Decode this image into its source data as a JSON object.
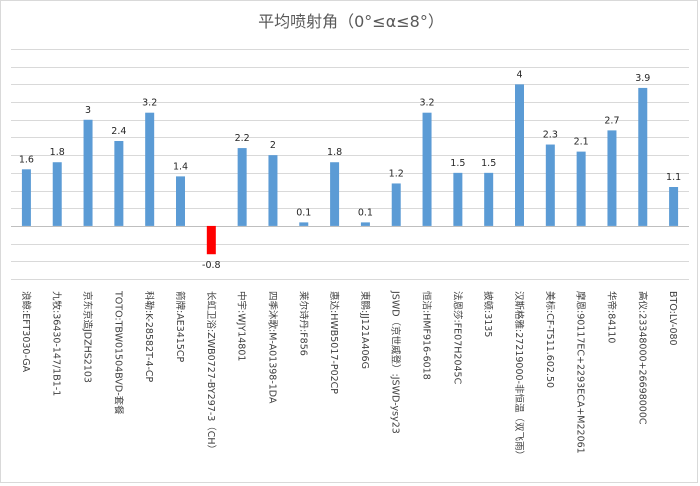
{
  "chart_data": {
    "type": "bar",
    "title": "平均喷射角（0°≤α≤8°）",
    "categories": [
      "浪鲸:EFT3030-GA",
      "九牧:36430-147/1B1-1",
      "京东京造JDZHS2103",
      "TOTO:TBW01504BVD-套餐",
      "科勒:K-28582T-4-CP",
      "箭牌:AE3415CP",
      "长虹卫浴:ZWB0727-BY297-3（CH）",
      "中宇:WJY14801",
      "四季沐歌:M-A01398-1DA",
      "莱尔诗丹:F856",
      "惠达:HWB5017-P02CP",
      "東鹏:JJ121A406G",
      "JSWD（京世威登）:JSWD-ysy23",
      "恒洁:HMF916-6018",
      "法恩莎:FE07H2045C",
      "披顿:3135",
      "汉斯格雅:27219000-非恒温（双飞雨）",
      "美标:CF-T511.602.50",
      "摩恩:90117EC+2293ECA+M22061",
      "华帝:84110",
      "高仪:23348000+26698000C",
      "BTO:LV-080"
    ],
    "values": [
      1.6,
      1.8,
      3,
      2.4,
      3.2,
      1.4,
      -0.8,
      2.2,
      2,
      0.1,
      1.8,
      0.1,
      1.2,
      3.2,
      1.5,
      1.5,
      4,
      2.3,
      2.1,
      2.7,
      3.9,
      1.1
    ],
    "value_labels": [
      "1.6",
      "1.8",
      "3",
      "2.4",
      "3.2",
      "1.4",
      "-0.8",
      "2.2",
      "2",
      "0.1",
      "1.8",
      "0.1",
      "1.2",
      "3.2",
      "1.5",
      "1.5",
      "4",
      "2.3",
      "2.1",
      "2.7",
      "3.9",
      "1.1"
    ],
    "ylim": [
      -1.5,
      5
    ],
    "grid": true,
    "colors": {
      "positive": "#5b9bd5",
      "negative": "#ff0000",
      "grid": "#d9d9d9",
      "title": "#595959"
    },
    "xlabel": "",
    "ylabel": ""
  }
}
